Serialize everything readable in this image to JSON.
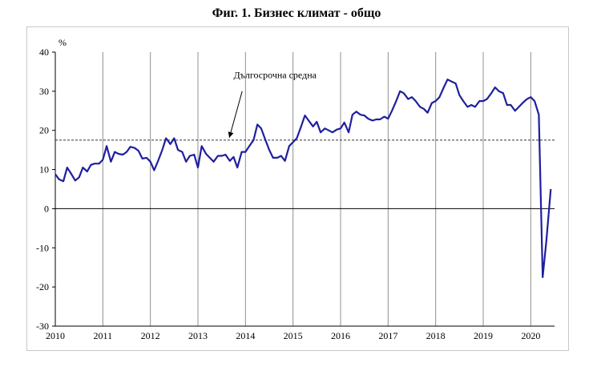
{
  "chart_data": {
    "type": "line",
    "title": "Фиг. 1. Бизнес климат - общо",
    "ylabel": "%",
    "xlabel": "",
    "ylim": [
      -30,
      40
    ],
    "yticks": [
      40,
      30,
      20,
      10,
      0,
      -10,
      -20,
      -30
    ],
    "xticks": [
      "2010",
      "2011",
      "2012",
      "2013",
      "2014",
      "2015",
      "2016",
      "2017",
      "2018",
      "2019",
      "2020"
    ],
    "grid": "vertical year lines",
    "reference_line": {
      "label": "Дългосрочна средна",
      "value": 17.5
    },
    "series": [
      {
        "color": "#1f1f9e",
        "points": [
          [
            2010.0,
            8.8
          ],
          [
            2010.08,
            7.5
          ],
          [
            2010.17,
            7.0
          ],
          [
            2010.25,
            10.5
          ],
          [
            2010.33,
            9.0
          ],
          [
            2010.42,
            7.2
          ],
          [
            2010.5,
            8.0
          ],
          [
            2010.58,
            10.5
          ],
          [
            2010.67,
            9.5
          ],
          [
            2010.75,
            11.2
          ],
          [
            2010.83,
            11.5
          ],
          [
            2010.92,
            11.5
          ],
          [
            2011.0,
            12.5
          ],
          [
            2011.08,
            16.0
          ],
          [
            2011.17,
            12.0
          ],
          [
            2011.25,
            14.5
          ],
          [
            2011.33,
            14.0
          ],
          [
            2011.42,
            13.8
          ],
          [
            2011.5,
            14.5
          ],
          [
            2011.58,
            15.8
          ],
          [
            2011.67,
            15.5
          ],
          [
            2011.75,
            14.8
          ],
          [
            2011.83,
            12.8
          ],
          [
            2011.92,
            13.0
          ],
          [
            2012.0,
            12.0
          ],
          [
            2012.08,
            9.8
          ],
          [
            2012.17,
            12.5
          ],
          [
            2012.25,
            15.0
          ],
          [
            2012.33,
            18.0
          ],
          [
            2012.42,
            16.5
          ],
          [
            2012.5,
            18.0
          ],
          [
            2012.58,
            15.0
          ],
          [
            2012.67,
            14.5
          ],
          [
            2012.75,
            12.0
          ],
          [
            2012.83,
            13.5
          ],
          [
            2012.92,
            13.8
          ],
          [
            2013.0,
            10.5
          ],
          [
            2013.08,
            16.0
          ],
          [
            2013.17,
            14.0
          ],
          [
            2013.25,
            13.0
          ],
          [
            2013.33,
            12.0
          ],
          [
            2013.42,
            13.5
          ],
          [
            2013.5,
            13.5
          ],
          [
            2013.58,
            13.8
          ],
          [
            2013.67,
            12.2
          ],
          [
            2013.75,
            13.2
          ],
          [
            2013.83,
            10.5
          ],
          [
            2013.92,
            14.5
          ],
          [
            2014.0,
            14.5
          ],
          [
            2014.08,
            16.0
          ],
          [
            2014.17,
            17.5
          ],
          [
            2014.25,
            21.5
          ],
          [
            2014.33,
            20.5
          ],
          [
            2014.42,
            17.5
          ],
          [
            2014.5,
            15.0
          ],
          [
            2014.58,
            13.0
          ],
          [
            2014.67,
            13.0
          ],
          [
            2014.75,
            13.5
          ],
          [
            2014.83,
            12.2
          ],
          [
            2014.92,
            16.0
          ],
          [
            2015.0,
            17.0
          ],
          [
            2015.08,
            18.0
          ],
          [
            2015.17,
            21.0
          ],
          [
            2015.25,
            23.8
          ],
          [
            2015.33,
            22.5
          ],
          [
            2015.42,
            21.0
          ],
          [
            2015.5,
            22.2
          ],
          [
            2015.58,
            19.5
          ],
          [
            2015.67,
            20.5
          ],
          [
            2015.75,
            20.0
          ],
          [
            2015.83,
            19.5
          ],
          [
            2015.92,
            20.2
          ],
          [
            2016.0,
            20.5
          ],
          [
            2016.08,
            22.0
          ],
          [
            2016.17,
            19.5
          ],
          [
            2016.25,
            24.0
          ],
          [
            2016.33,
            24.8
          ],
          [
            2016.42,
            24.0
          ],
          [
            2016.5,
            23.8
          ],
          [
            2016.58,
            23.0
          ],
          [
            2016.67,
            22.5
          ],
          [
            2016.75,
            22.8
          ],
          [
            2016.83,
            22.8
          ],
          [
            2016.92,
            23.5
          ],
          [
            2017.0,
            23.0
          ],
          [
            2017.08,
            25.0
          ],
          [
            2017.17,
            27.5
          ],
          [
            2017.25,
            30.0
          ],
          [
            2017.33,
            29.5
          ],
          [
            2017.42,
            28.0
          ],
          [
            2017.5,
            28.5
          ],
          [
            2017.58,
            27.5
          ],
          [
            2017.67,
            26.0
          ],
          [
            2017.75,
            25.5
          ],
          [
            2017.83,
            24.5
          ],
          [
            2017.92,
            27.0
          ],
          [
            2018.0,
            27.5
          ],
          [
            2018.08,
            28.5
          ],
          [
            2018.17,
            31.0
          ],
          [
            2018.25,
            33.0
          ],
          [
            2018.33,
            32.5
          ],
          [
            2018.42,
            32.0
          ],
          [
            2018.5,
            29.0
          ],
          [
            2018.58,
            27.5
          ],
          [
            2018.67,
            26.0
          ],
          [
            2018.75,
            26.5
          ],
          [
            2018.83,
            26.0
          ],
          [
            2018.92,
            27.5
          ],
          [
            2019.0,
            27.5
          ],
          [
            2019.08,
            28.0
          ],
          [
            2019.17,
            29.5
          ],
          [
            2019.25,
            31.0
          ],
          [
            2019.33,
            30.0
          ],
          [
            2019.42,
            29.5
          ],
          [
            2019.5,
            26.5
          ],
          [
            2019.58,
            26.5
          ],
          [
            2019.67,
            25.0
          ],
          [
            2019.75,
            26.0
          ],
          [
            2019.83,
            27.0
          ],
          [
            2019.92,
            28.0
          ],
          [
            2020.0,
            28.5
          ],
          [
            2020.08,
            27.5
          ],
          [
            2020.17,
            24.0
          ],
          [
            2020.25,
            -17.5
          ],
          [
            2020.33,
            -8.0
          ],
          [
            2020.42,
            5.0
          ]
        ]
      }
    ]
  }
}
